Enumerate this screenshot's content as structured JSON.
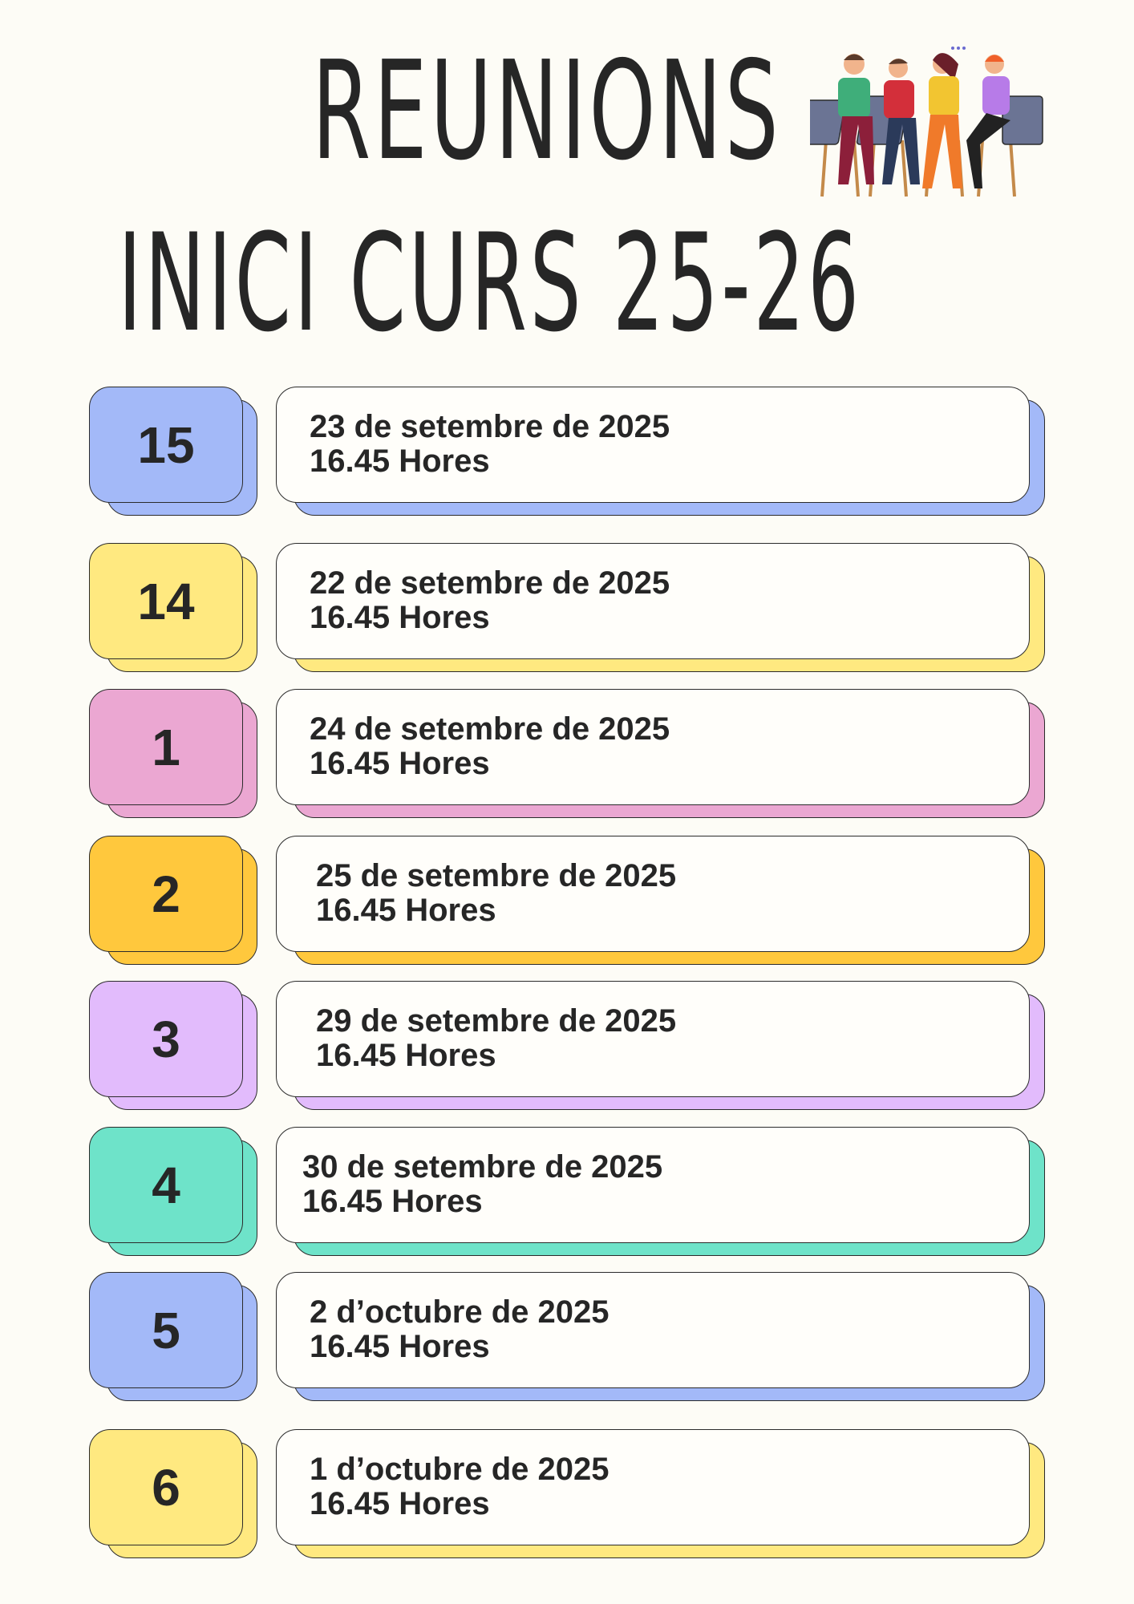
{
  "title": {
    "line1": "REUNIONS",
    "line2": "INICI CURS 25-26"
  },
  "illustration": {
    "icon": "meeting-people-illustration"
  },
  "meetings": [
    {
      "group": "15",
      "date": "23 de setembre de 2025",
      "time": "16.45 Hores",
      "color": "#a3b9f8"
    },
    {
      "group": "14",
      "date": "22 de setembre de 2025",
      "time": "16.45 Hores",
      "color": "#ffe980"
    },
    {
      "group": "1",
      "date": "24 de setembre de 2025",
      "time": "16.45 Hores",
      "color": "#eba7d2"
    },
    {
      "group": "2",
      "date": "25 de setembre de 2025",
      "time": "16.45 Hores",
      "color": "#ffc83d"
    },
    {
      "group": "3",
      "date": "29 de setembre de 2025",
      "time": "16.45 Hores",
      "color": "#e2bbfc"
    },
    {
      "group": "4",
      "date": "30 de setembre de 2025",
      "time": "16.45 Hores",
      "color": "#6ee3c9"
    },
    {
      "group": "5",
      "date": "2 d’octubre de 2025",
      "time": "16.45 Hores",
      "color": "#a3b9f8"
    },
    {
      "group": "6",
      "date": "1 d’octubre de 2025",
      "time": "16.45 Hores",
      "color": "#ffe980"
    }
  ]
}
